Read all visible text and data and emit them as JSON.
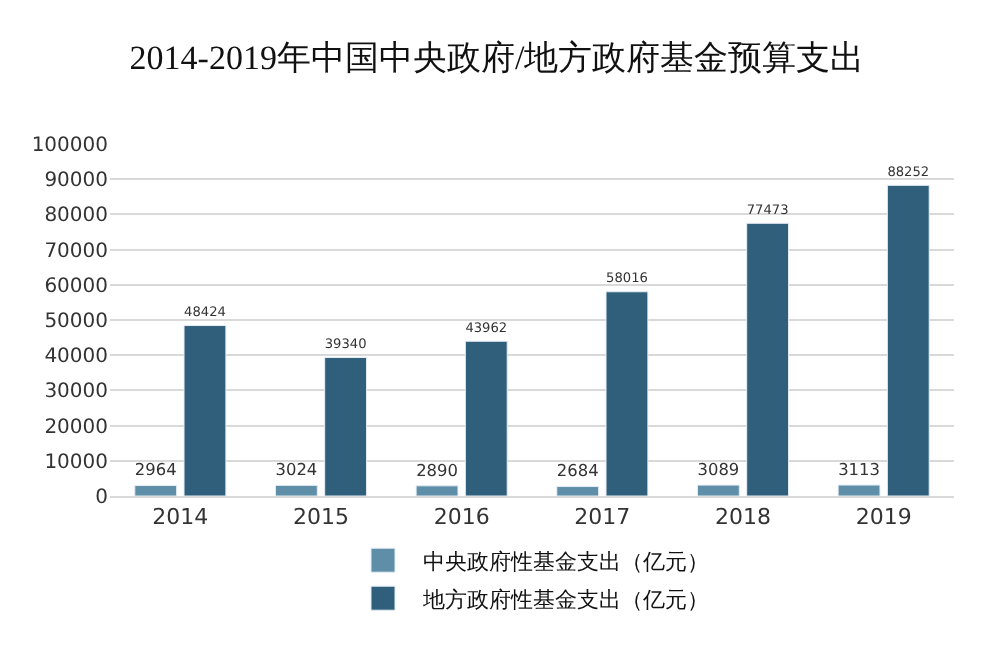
{
  "chart_data": {
    "type": "bar",
    "title": "2014-2019年中国中央政府/地方政府基金预算支出",
    "categories": [
      "2014",
      "2015",
      "2016",
      "2017",
      "2018",
      "2019"
    ],
    "series": [
      {
        "name": "中央政府性基金支出（亿元）",
        "color": "#5f8fa8",
        "values": [
          2964,
          3024,
          2890,
          2684,
          3089,
          3113
        ]
      },
      {
        "name": "地方政府性基金支出（亿元）",
        "color": "#2f5f7a",
        "values": [
          48424,
          39340,
          43962,
          58016,
          77473,
          88252
        ]
      }
    ],
    "ylim": [
      0,
      100000
    ],
    "yticks": [
      0,
      10000,
      20000,
      30000,
      40000,
      50000,
      60000,
      70000,
      80000,
      90000,
      100000
    ],
    "grid": "y",
    "legend": "bottom",
    "data_labels": true
  }
}
